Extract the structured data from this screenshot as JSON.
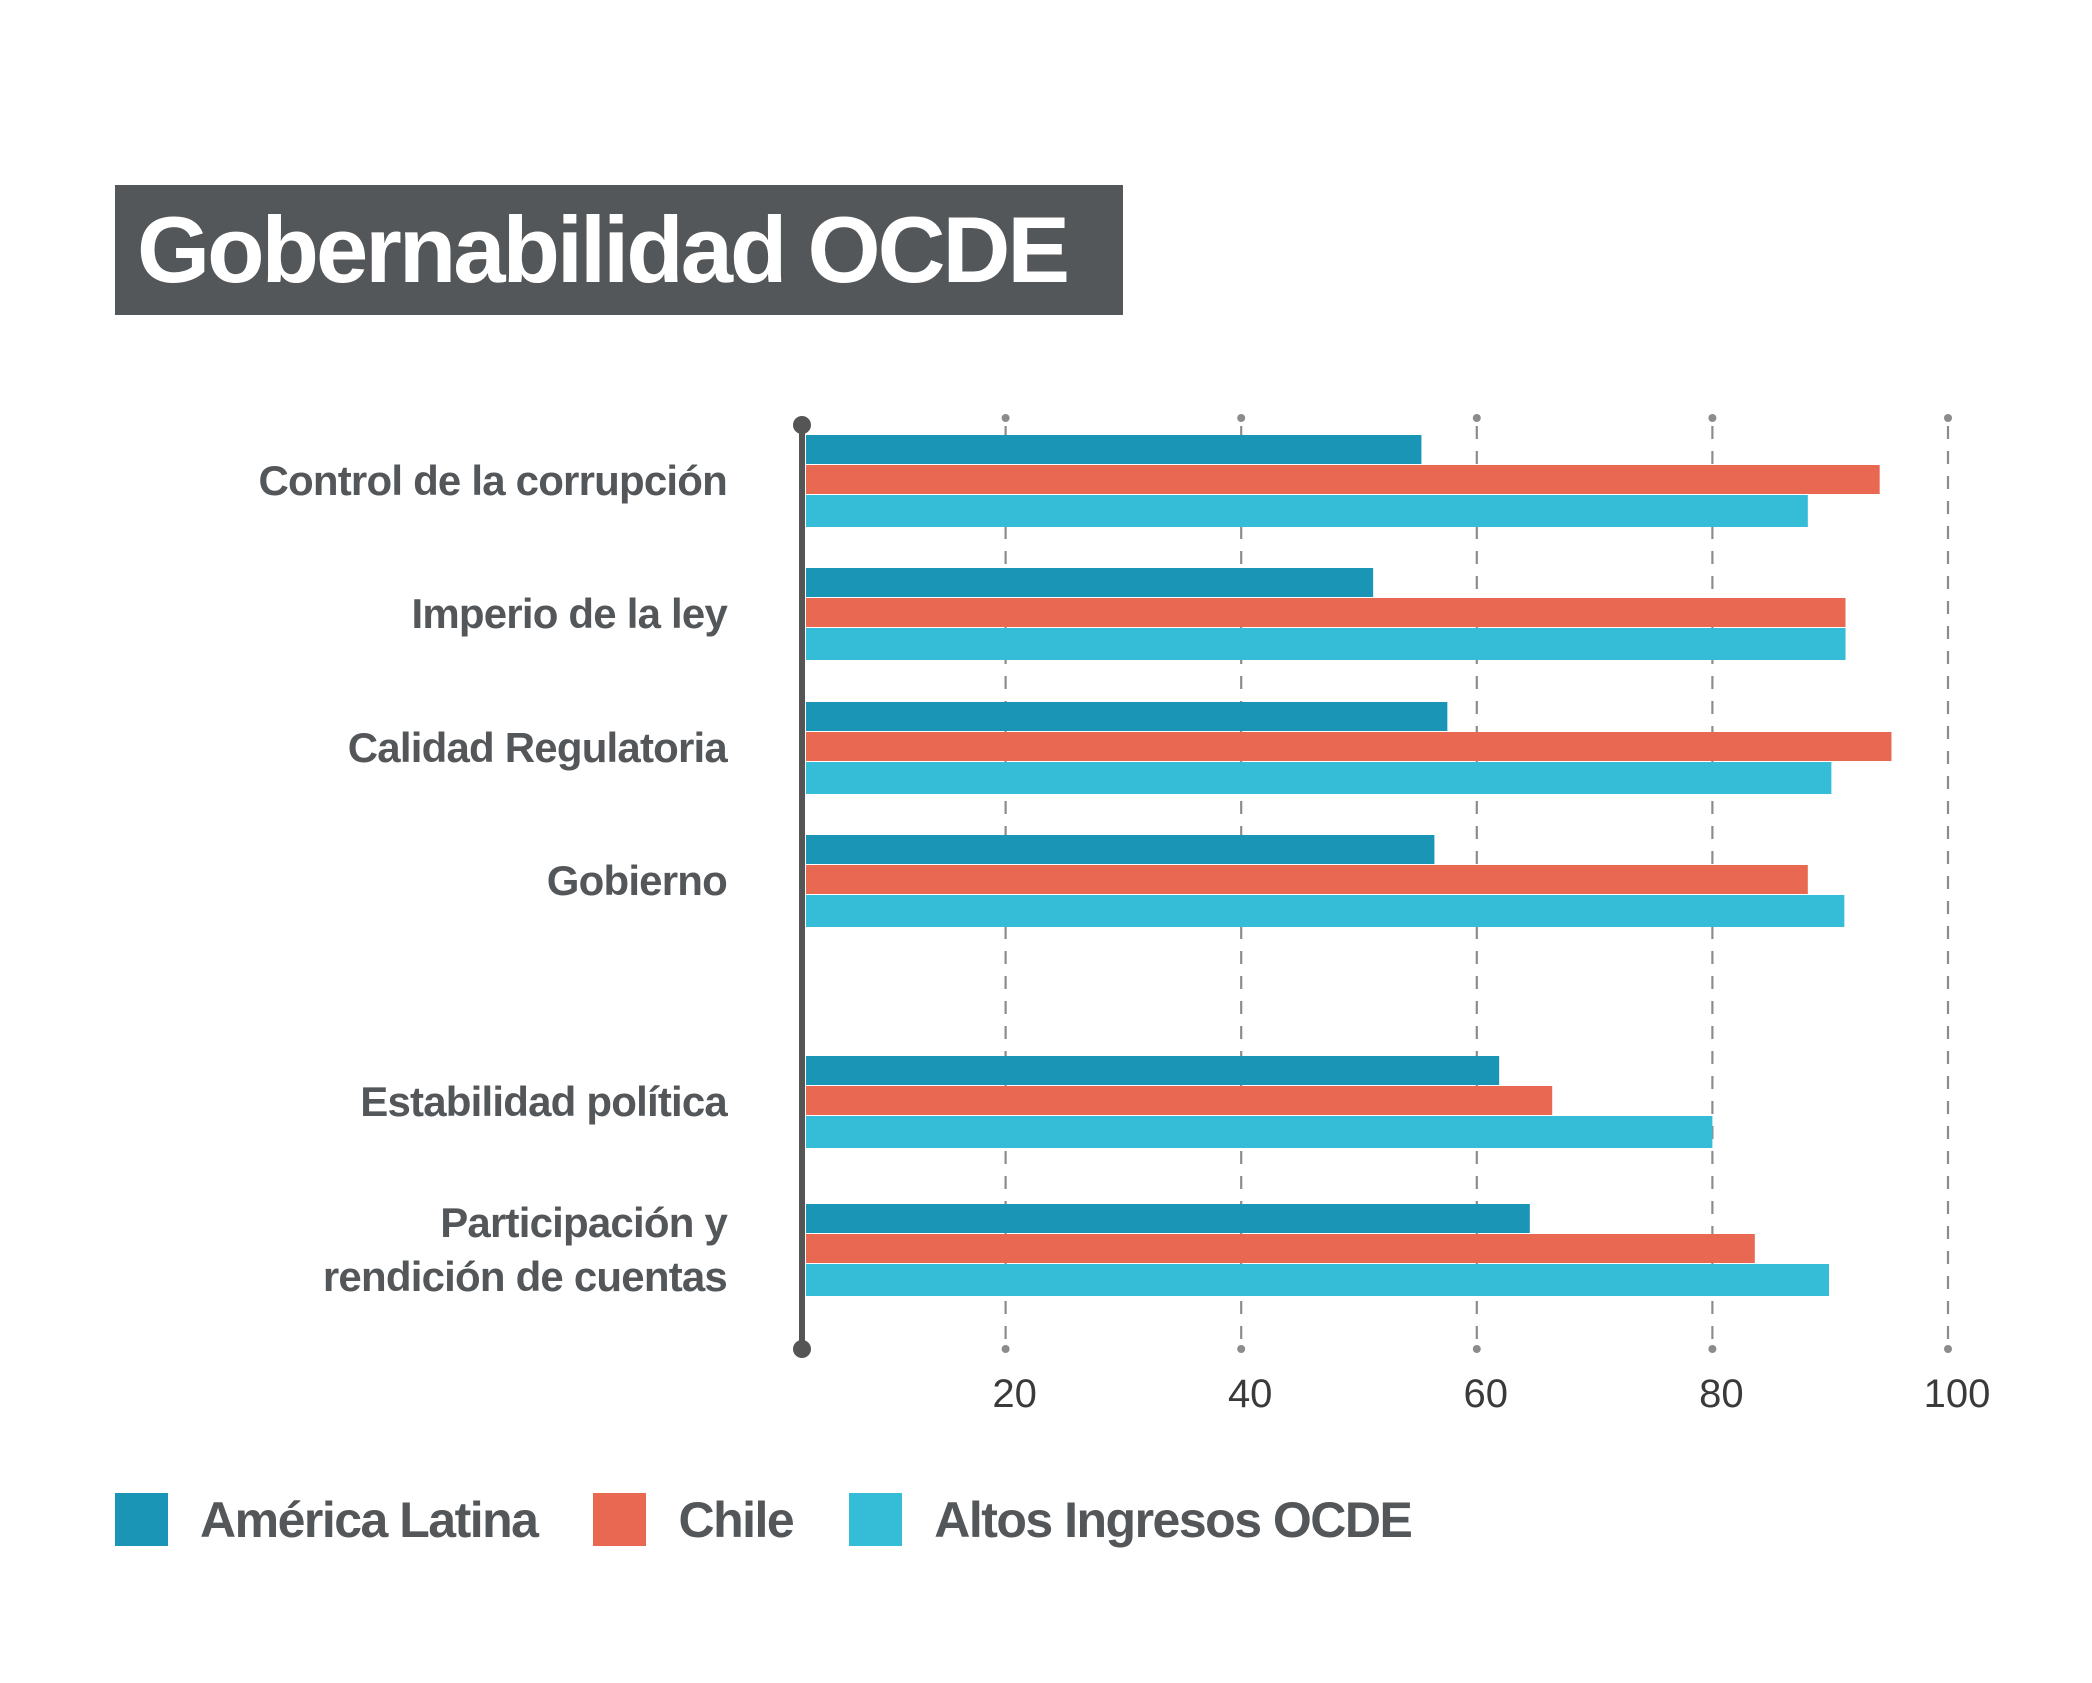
{
  "title": "Gobernabilidad OCDE",
  "chart_data": {
    "type": "bar",
    "orientation": "horizontal",
    "title": "Gobernabilidad OCDE",
    "xlabel": "",
    "ylabel": "",
    "xlim": [
      0,
      100
    ],
    "xticks": [
      20,
      40,
      60,
      80,
      100
    ],
    "grid": "vertical-dashed",
    "legend_position": "bottom-left",
    "categories": [
      [
        "Control de la corrupción"
      ],
      [
        "Imperio de la ley"
      ],
      [
        "Calidad Regulatoria"
      ],
      [
        "Gobierno"
      ],
      [
        "Estabilidad política"
      ],
      [
        "Participación y",
        "rendición de cuentas"
      ]
    ],
    "series": [
      {
        "name": "América Latina",
        "color": "#1a95b5",
        "values": [
          55.3,
          51.2,
          57.5,
          56.4,
          61.9,
          64.5
        ]
      },
      {
        "name": "Chile",
        "color": "#e96852",
        "values": [
          94.2,
          91.3,
          95.2,
          88.1,
          66.4,
          83.6
        ]
      },
      {
        "name": "Altos Ingresos OCDE",
        "color": "#35bcd7",
        "values": [
          88.1,
          91.3,
          90.1,
          91.2,
          80.0,
          89.9
        ]
      }
    ]
  },
  "legend": [
    {
      "label": "América Latina",
      "color": "#1a95b5"
    },
    {
      "label": "Chile",
      "color": "#e96852"
    },
    {
      "label": "Altos Ingresos OCDE",
      "color": "#35bcd7"
    }
  ],
  "colors": {
    "title_bg": "#54575a",
    "axis": "#555555",
    "grid": "#8c8c8c",
    "label_text": "#54575a"
  }
}
